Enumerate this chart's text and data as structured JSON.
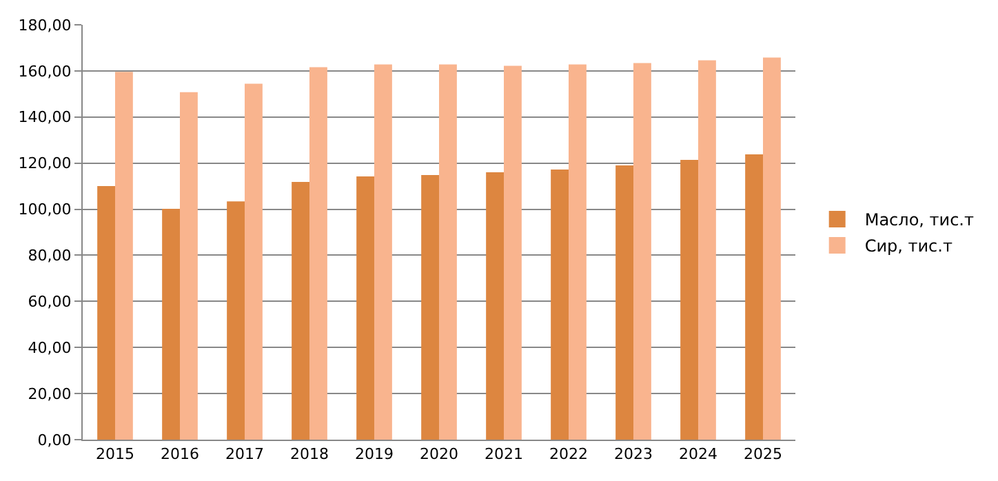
{
  "chart_data": {
    "type": "bar",
    "categories": [
      "2015",
      "2016",
      "2017",
      "2018",
      "2019",
      "2020",
      "2021",
      "2022",
      "2023",
      "2024",
      "2025"
    ],
    "series": [
      {
        "name": "Масло, тис.т",
        "color": "#dd8640",
        "values": [
          110,
          100.2,
          103.4,
          111.8,
          114.2,
          114.8,
          116,
          117.2,
          119,
          121.4,
          123.8
        ]
      },
      {
        "name": "Сир, тис.т",
        "color": "#f9b48e",
        "values": [
          159.6,
          150.8,
          154.4,
          161.6,
          162.8,
          162.8,
          162.2,
          162.8,
          163.4,
          164.6,
          165.8
        ]
      }
    ],
    "ylim": [
      0,
      180
    ],
    "yticks": [
      {
        "value": 0,
        "label": "0,00"
      },
      {
        "value": 20,
        "label": "20,00"
      },
      {
        "value": 40,
        "label": "40,00"
      },
      {
        "value": 60,
        "label": "60,00"
      },
      {
        "value": 80,
        "label": "80,00"
      },
      {
        "value": 100,
        "label": "100,00"
      },
      {
        "value": 120,
        "label": "120,00"
      },
      {
        "value": 140,
        "label": "140,00"
      },
      {
        "value": 160,
        "label": "160,00"
      },
      {
        "value": 180,
        "label": "180,00"
      }
    ],
    "grid": "y",
    "legend": "right"
  }
}
